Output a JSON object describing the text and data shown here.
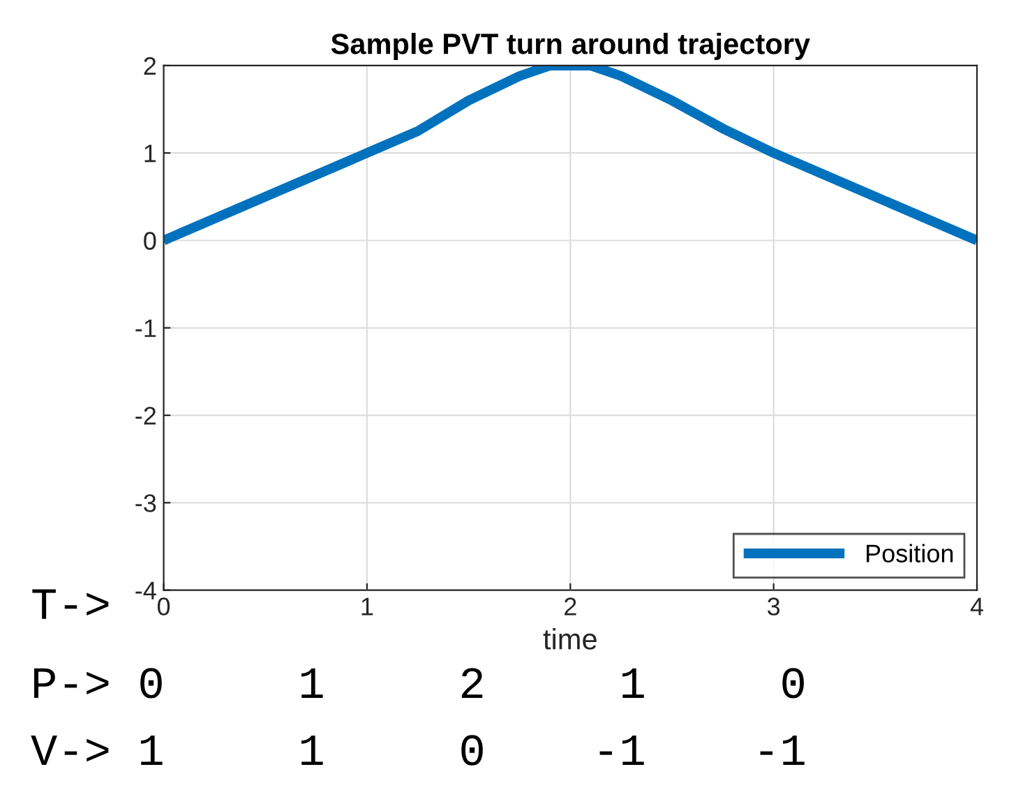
{
  "chart_data": {
    "type": "line",
    "title": "Sample PVT turn around trajectory",
    "xlabel": "time",
    "series": [
      {
        "name": "Position",
        "color": "#0072bd",
        "x": [
          0,
          0.5,
          1,
          1.25,
          1.5,
          1.75,
          1.9,
          2.1,
          2.25,
          2.5,
          2.75,
          3,
          3.5,
          4
        ],
        "values": [
          0,
          0.5,
          1,
          1.25,
          1.6,
          1.88,
          2,
          2,
          1.88,
          1.6,
          1.28,
          1,
          0.5,
          0
        ]
      }
    ],
    "xlim": [
      0,
      4
    ],
    "xticks": [
      0,
      1,
      2,
      3,
      4
    ],
    "ylim": [
      -4,
      2
    ],
    "yticks": [
      -4,
      -3,
      -2,
      -1,
      0,
      1,
      2
    ],
    "grid": true,
    "legend": "bottom right",
    "marker": "none",
    "line_style": "solid",
    "annotations": [
      "T->",
      "P-> 0     1     2     1     0",
      "V-> 1     1     0    -1    -1"
    ]
  }
}
